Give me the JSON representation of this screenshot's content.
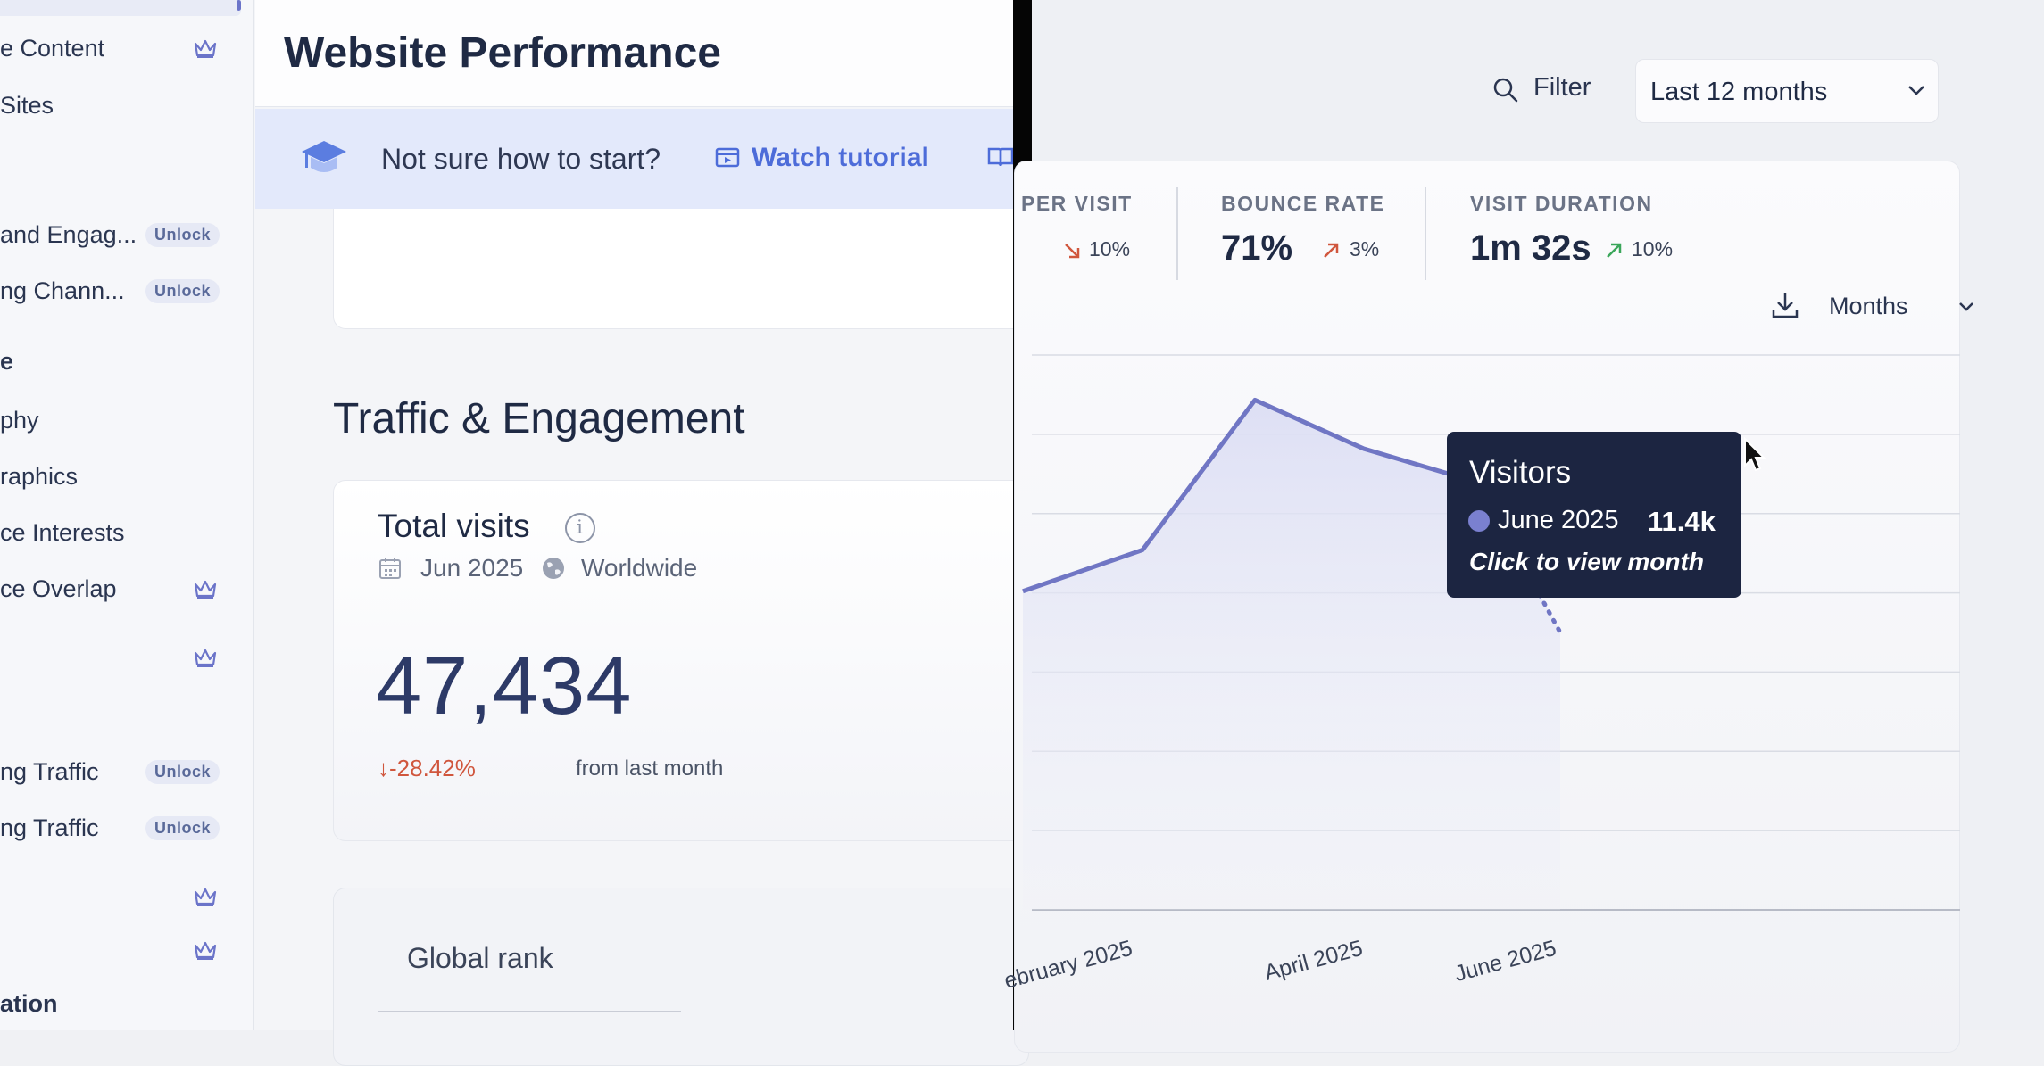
{
  "sidebar": {
    "items": [
      {
        "label": "e Content",
        "badge": "crown"
      },
      {
        "label": "Sites",
        "badge": ""
      },
      {
        "label": "and Engag...",
        "badge": "unlock"
      },
      {
        "label": "ng Chann...",
        "badge": "unlock"
      },
      {
        "label": "e",
        "badge": "",
        "head": true
      },
      {
        "label": "phy",
        "badge": ""
      },
      {
        "label": "raphics",
        "badge": ""
      },
      {
        "label": "ce Interests",
        "badge": ""
      },
      {
        "label": "ce Overlap",
        "badge": "crown"
      },
      {
        "label": "",
        "badge": "crown"
      },
      {
        "label": "ng Traffic",
        "badge": "unlock"
      },
      {
        "label": "ng Traffic",
        "badge": "unlock"
      },
      {
        "label": "",
        "badge": "crown"
      },
      {
        "label": "",
        "badge": "crown"
      },
      {
        "label": "ation",
        "badge": "",
        "head": true
      }
    ],
    "unlock_label": "Unlock"
  },
  "main": {
    "page_title": "Website Performance",
    "banner": {
      "question": "Not sure how to start?",
      "tutorial_link": "Watch tutorial"
    },
    "section_title": "Traffic & Engagement",
    "total_visits": {
      "title": "Total visits",
      "date": "Jun 2025",
      "region": "Worldwide",
      "value": "47,434",
      "delta": "↓-28.42%",
      "delta_suffix": "from last month"
    },
    "global_rank": {
      "title": "Global rank"
    }
  },
  "toolbar": {
    "filter_label": "Filter",
    "range_label": "Last 12 months"
  },
  "metrics": [
    {
      "label": "PER VISIT",
      "value": "",
      "delta": "10%",
      "direction": "down"
    },
    {
      "label": "BOUNCE RATE",
      "value": "71%",
      "delta": "3%",
      "direction": "up"
    },
    {
      "label": "VISIT DURATION",
      "value": "1m 32s",
      "delta": "10%",
      "direction": "up"
    }
  ],
  "chart_controls": {
    "granularity": "Months"
  },
  "chart_data": {
    "type": "line",
    "metric": "Visitors",
    "x_tick_labels": [
      "ebruary 2025",
      "April 2025",
      "June 2025"
    ],
    "points": [
      {
        "x": "Feb 2025",
        "y": 8.5
      },
      {
        "x": "Mar 2025",
        "y": 9.6
      },
      {
        "x": "Apr 2025",
        "y": 13.6
      },
      {
        "x": "May 2025",
        "y": 12.3
      },
      {
        "x": "Jun 2025",
        "y": 11.4
      },
      {
        "x": "Jul 2025",
        "y": 7.4,
        "projected": true
      }
    ],
    "ylim": [
      0,
      14.8
    ],
    "grid": true,
    "colors": {
      "line": "#7076c4",
      "fill": "#e2e4f6"
    }
  },
  "tooltip": {
    "title": "Visitors",
    "month": "June 2025",
    "value": "11.4k",
    "hint": "Click to view month"
  },
  "colors": {
    "accent": "#4d6cd9",
    "negative": "#d0563d",
    "positive": "#3aa65a",
    "tooltip_bg": "#1c2541"
  }
}
